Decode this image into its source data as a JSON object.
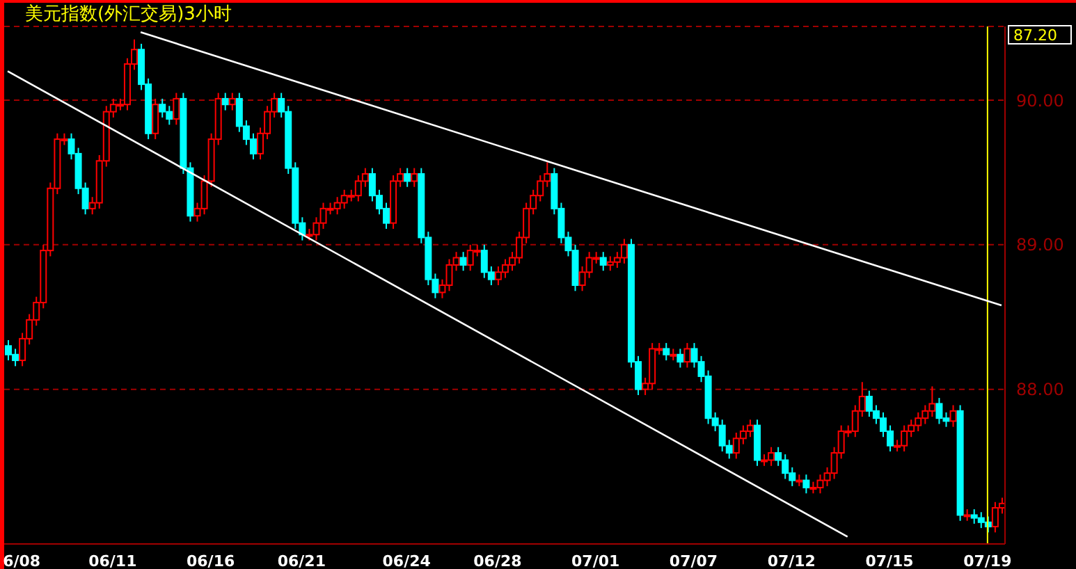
{
  "chart_data": {
    "type": "candlestick",
    "title": "美元指数(外汇交易)3小时",
    "categories": [
      null,
      null,
      "6/08",
      null,
      null,
      null,
      null,
      null,
      null,
      null,
      null,
      null,
      null,
      null,
      null,
      "06/11",
      null,
      null,
      null,
      null,
      null,
      null,
      null,
      null,
      null,
      null,
      null,
      null,
      null,
      "06/16",
      null,
      null,
      null,
      null,
      null,
      null,
      null,
      null,
      null,
      null,
      null,
      null,
      "06/21",
      null,
      null,
      null,
      null,
      null,
      null,
      null,
      null,
      null,
      null,
      null,
      null,
      null,
      null,
      "06/24",
      null,
      null,
      null,
      null,
      null,
      null,
      null,
      null,
      null,
      null,
      null,
      null,
      "06/28",
      null,
      null,
      null,
      null,
      null,
      null,
      null,
      null,
      null,
      null,
      null,
      null,
      null,
      "07/01",
      null,
      null,
      null,
      null,
      null,
      null,
      null,
      null,
      null,
      null,
      null,
      null,
      null,
      "07/07",
      null,
      null,
      null,
      null,
      null,
      null,
      null,
      null,
      null,
      null,
      null,
      null,
      null,
      "07/12",
      null,
      null,
      null,
      null,
      null,
      null,
      null,
      null,
      null,
      null,
      null,
      null,
      null,
      "07/15",
      null,
      null,
      null,
      null,
      null,
      null,
      null,
      null,
      null,
      null,
      null,
      null,
      null,
      "07/19",
      null,
      null
    ],
    "ohlc": [
      [
        88.3,
        88.34,
        88.2,
        88.24
      ],
      [
        88.24,
        88.28,
        88.16,
        88.2
      ],
      [
        88.2,
        88.39,
        88.16,
        88.35
      ],
      [
        88.35,
        88.52,
        88.31,
        88.48
      ],
      [
        88.48,
        88.64,
        88.44,
        88.6
      ],
      [
        88.6,
        89.0,
        88.56,
        88.96
      ],
      [
        88.96,
        89.43,
        88.92,
        89.39
      ],
      [
        89.39,
        89.77,
        89.35,
        89.73
      ],
      [
        89.73,
        89.77,
        89.69,
        89.73
      ],
      [
        89.73,
        89.77,
        89.59,
        89.63
      ],
      [
        89.63,
        89.67,
        89.35,
        89.39
      ],
      [
        89.39,
        89.43,
        89.21,
        89.25
      ],
      [
        89.25,
        89.33,
        89.21,
        89.29
      ],
      [
        89.29,
        89.62,
        89.25,
        89.58
      ],
      [
        89.58,
        89.96,
        89.54,
        89.92
      ],
      [
        89.92,
        90.01,
        89.88,
        89.97
      ],
      [
        89.97,
        90.01,
        89.93,
        89.97
      ],
      [
        89.97,
        90.29,
        89.93,
        90.25
      ],
      [
        90.25,
        90.42,
        90.21,
        90.35
      ],
      [
        90.35,
        90.39,
        90.07,
        90.11
      ],
      [
        90.11,
        90.15,
        89.73,
        89.77
      ],
      [
        89.77,
        90.01,
        89.73,
        89.97
      ],
      [
        89.97,
        90.01,
        89.88,
        89.92
      ],
      [
        89.92,
        89.96,
        89.83,
        89.87
      ],
      [
        89.87,
        90.05,
        89.83,
        90.01
      ],
      [
        90.01,
        90.05,
        89.49,
        89.53
      ],
      [
        89.53,
        89.57,
        89.16,
        89.2
      ],
      [
        89.2,
        89.29,
        89.16,
        89.25
      ],
      [
        89.25,
        89.48,
        89.21,
        89.44
      ],
      [
        89.44,
        89.77,
        89.4,
        89.73
      ],
      [
        89.73,
        90.05,
        89.69,
        90.01
      ],
      [
        90.01,
        90.05,
        89.93,
        89.97
      ],
      [
        89.97,
        90.05,
        89.93,
        90.01
      ],
      [
        90.01,
        90.05,
        89.78,
        89.82
      ],
      [
        89.82,
        89.86,
        89.69,
        89.73
      ],
      [
        89.73,
        89.77,
        89.59,
        89.63
      ],
      [
        89.63,
        89.81,
        89.59,
        89.77
      ],
      [
        89.77,
        89.96,
        89.73,
        89.92
      ],
      [
        89.92,
        90.05,
        89.88,
        90.01
      ],
      [
        90.01,
        90.05,
        89.88,
        89.92
      ],
      [
        89.92,
        89.96,
        89.49,
        89.53
      ],
      [
        89.53,
        89.57,
        89.11,
        89.15
      ],
      [
        89.15,
        89.19,
        89.03,
        89.07
      ],
      [
        89.07,
        89.11,
        89.03,
        89.07
      ],
      [
        89.07,
        89.19,
        89.03,
        89.15
      ],
      [
        89.15,
        89.29,
        89.11,
        89.25
      ],
      [
        89.25,
        89.29,
        89.21,
        89.25
      ],
      [
        89.25,
        89.33,
        89.21,
        89.29
      ],
      [
        89.29,
        89.38,
        89.25,
        89.34
      ],
      [
        89.34,
        89.38,
        89.3,
        89.34
      ],
      [
        89.34,
        89.48,
        89.3,
        89.44
      ],
      [
        89.44,
        89.53,
        89.4,
        89.49
      ],
      [
        89.49,
        89.53,
        89.3,
        89.34
      ],
      [
        89.34,
        89.38,
        89.21,
        89.25
      ],
      [
        89.25,
        89.29,
        89.11,
        89.15
      ],
      [
        89.15,
        89.48,
        89.11,
        89.44
      ],
      [
        89.44,
        89.53,
        89.4,
        89.49
      ],
      [
        89.49,
        89.53,
        89.4,
        89.44
      ],
      [
        89.44,
        89.53,
        89.4,
        89.49
      ],
      [
        89.49,
        89.53,
        89.01,
        89.05
      ],
      [
        89.05,
        89.09,
        88.72,
        88.76
      ],
      [
        88.76,
        88.8,
        88.63,
        88.67
      ],
      [
        88.67,
        88.76,
        88.63,
        88.72
      ],
      [
        88.72,
        88.9,
        88.68,
        88.86
      ],
      [
        88.86,
        88.95,
        88.82,
        88.91
      ],
      [
        88.91,
        88.95,
        88.82,
        88.86
      ],
      [
        88.86,
        89.0,
        88.82,
        88.96
      ],
      [
        88.96,
        89.0,
        88.92,
        88.96
      ],
      [
        88.96,
        89.0,
        88.77,
        88.81
      ],
      [
        88.81,
        88.85,
        88.72,
        88.76
      ],
      [
        88.76,
        88.85,
        88.72,
        88.81
      ],
      [
        88.81,
        88.9,
        88.77,
        88.86
      ],
      [
        88.86,
        88.95,
        88.82,
        88.91
      ],
      [
        88.91,
        89.09,
        88.87,
        89.05
      ],
      [
        89.05,
        89.29,
        89.01,
        89.25
      ],
      [
        89.25,
        89.38,
        89.21,
        89.34
      ],
      [
        89.34,
        89.48,
        89.3,
        89.44
      ],
      [
        89.44,
        89.57,
        89.4,
        89.49
      ],
      [
        89.49,
        89.53,
        89.21,
        89.25
      ],
      [
        89.25,
        89.29,
        89.01,
        89.05
      ],
      [
        89.05,
        89.09,
        88.92,
        88.96
      ],
      [
        88.96,
        89.0,
        88.68,
        88.72
      ],
      [
        88.72,
        88.85,
        88.68,
        88.81
      ],
      [
        88.81,
        88.95,
        88.77,
        88.91
      ],
      [
        88.91,
        88.95,
        88.87,
        88.91
      ],
      [
        88.91,
        88.95,
        88.82,
        88.86
      ],
      [
        88.86,
        88.92,
        88.82,
        88.88
      ],
      [
        88.88,
        88.95,
        88.84,
        88.91
      ],
      [
        88.91,
        89.04,
        88.87,
        89.0
      ],
      [
        89.0,
        89.04,
        88.15,
        88.19
      ],
      [
        88.19,
        88.23,
        87.96,
        88.0
      ],
      [
        88.0,
        88.08,
        87.96,
        88.04
      ],
      [
        88.04,
        88.32,
        88.0,
        88.28
      ],
      [
        88.28,
        88.32,
        88.24,
        88.28
      ],
      [
        88.28,
        88.32,
        88.2,
        88.24
      ],
      [
        88.24,
        88.28,
        88.2,
        88.24
      ],
      [
        88.24,
        88.28,
        88.15,
        88.19
      ],
      [
        88.19,
        88.32,
        88.15,
        88.28
      ],
      [
        88.28,
        88.32,
        88.15,
        88.19
      ],
      [
        88.19,
        88.23,
        88.05,
        88.09
      ],
      [
        88.09,
        88.13,
        87.76,
        87.8
      ],
      [
        87.8,
        87.84,
        87.71,
        87.75
      ],
      [
        87.75,
        87.79,
        87.57,
        87.61
      ],
      [
        87.61,
        87.65,
        87.52,
        87.56
      ],
      [
        87.56,
        87.7,
        87.52,
        87.66
      ],
      [
        87.66,
        87.75,
        87.62,
        87.71
      ],
      [
        87.71,
        87.79,
        87.67,
        87.75
      ],
      [
        87.75,
        87.79,
        87.47,
        87.51
      ],
      [
        87.51,
        87.55,
        87.47,
        87.51
      ],
      [
        87.51,
        87.6,
        87.47,
        87.56
      ],
      [
        87.56,
        87.6,
        87.47,
        87.51
      ],
      [
        87.51,
        87.55,
        87.38,
        87.42
      ],
      [
        87.42,
        87.46,
        87.33,
        87.37
      ],
      [
        87.37,
        87.41,
        87.33,
        87.37
      ],
      [
        87.37,
        87.41,
        87.28,
        87.32
      ],
      [
        87.32,
        87.36,
        87.28,
        87.32
      ],
      [
        87.32,
        87.41,
        87.28,
        87.37
      ],
      [
        87.37,
        87.46,
        87.33,
        87.42
      ],
      [
        87.42,
        87.6,
        87.38,
        87.56
      ],
      [
        87.56,
        87.75,
        87.52,
        87.71
      ],
      [
        87.71,
        87.75,
        87.67,
        87.71
      ],
      [
        87.71,
        87.89,
        87.67,
        87.85
      ],
      [
        87.85,
        88.05,
        87.81,
        87.95
      ],
      [
        87.95,
        87.99,
        87.81,
        87.85
      ],
      [
        87.85,
        87.89,
        87.76,
        87.8
      ],
      [
        87.8,
        87.84,
        87.67,
        87.71
      ],
      [
        87.71,
        87.75,
        87.57,
        87.61
      ],
      [
        87.61,
        87.65,
        87.57,
        87.61
      ],
      [
        87.61,
        87.75,
        87.57,
        87.71
      ],
      [
        87.71,
        87.79,
        87.67,
        87.75
      ],
      [
        87.75,
        87.84,
        87.71,
        87.8
      ],
      [
        87.8,
        87.89,
        87.76,
        87.85
      ],
      [
        87.85,
        88.02,
        87.81,
        87.9
      ],
      [
        87.9,
        87.94,
        87.76,
        87.8
      ],
      [
        87.8,
        87.84,
        87.74,
        87.78
      ],
      [
        87.78,
        87.89,
        87.74,
        87.85
      ],
      [
        87.85,
        87.89,
        87.09,
        87.13
      ],
      [
        87.13,
        87.17,
        87.09,
        87.13
      ],
      [
        87.13,
        87.17,
        87.07,
        87.11
      ],
      [
        87.11,
        87.15,
        87.04,
        87.08
      ],
      [
        87.08,
        87.12,
        87.01,
        87.05
      ],
      [
        87.05,
        87.22,
        87.01,
        87.18
      ],
      [
        87.18,
        87.25,
        87.14,
        87.21
      ]
    ],
    "series": [
      {
        "type": "line",
        "color": "#ffffff",
        "values": [
          null,
          null,
          null,
          null,
          null,
          null,
          null,
          null,
          null,
          null,
          null,
          null,
          null,
          null,
          null,
          null,
          null,
          null,
          null,
          90.47,
          null,
          null,
          null,
          null,
          null,
          null,
          null,
          null,
          null,
          null,
          null,
          null,
          null,
          null,
          null,
          null,
          null,
          null,
          null,
          null,
          null,
          null,
          null,
          null,
          null,
          null,
          null,
          null,
          null,
          null,
          null,
          null,
          null,
          null,
          null,
          null,
          null,
          null,
          null,
          null,
          null,
          null,
          null,
          null,
          null,
          null,
          null,
          null,
          null,
          null,
          null,
          null,
          null,
          null,
          null,
          null,
          null,
          null,
          null,
          null,
          null,
          null,
          null,
          null,
          null,
          null,
          null,
          null,
          null,
          null,
          null,
          null,
          null,
          null,
          null,
          null,
          null,
          null,
          null,
          null,
          null,
          null,
          null,
          null,
          null,
          null,
          null,
          null,
          null,
          null,
          null,
          null,
          null,
          null,
          null,
          null,
          null,
          null,
          null,
          null,
          null,
          null,
          null,
          null,
          null,
          null,
          null,
          null,
          null,
          null,
          null,
          null,
          null,
          null,
          null,
          null,
          null,
          null,
          null,
          null,
          null,
          null,
          88.58
        ]
      },
      {
        "type": "line",
        "color": "#ffffff",
        "values": [
          90.2,
          null,
          null,
          null,
          null,
          null,
          null,
          null,
          null,
          null,
          null,
          null,
          null,
          null,
          null,
          null,
          null,
          null,
          null,
          null,
          null,
          null,
          null,
          null,
          null,
          null,
          null,
          null,
          null,
          null,
          null,
          null,
          null,
          null,
          null,
          null,
          null,
          null,
          null,
          null,
          null,
          null,
          null,
          null,
          null,
          null,
          null,
          null,
          null,
          null,
          null,
          null,
          null,
          null,
          null,
          null,
          null,
          null,
          null,
          null,
          null,
          null,
          null,
          null,
          null,
          null,
          null,
          null,
          null,
          null,
          null,
          null,
          null,
          null,
          null,
          null,
          null,
          null,
          null,
          null,
          null,
          null,
          null,
          null,
          null,
          null,
          null,
          null,
          null,
          null,
          null,
          null,
          null,
          null,
          null,
          null,
          null,
          null,
          null,
          null,
          null,
          null,
          null,
          null,
          null,
          null,
          null,
          null,
          null,
          null,
          null,
          null,
          null,
          null,
          null,
          null,
          null,
          null,
          null,
          null,
          86.98,
          null,
          null,
          null,
          null,
          null,
          null,
          null,
          null,
          null,
          null,
          null,
          null,
          null,
          null,
          null,
          null,
          null,
          null,
          null,
          null,
          null,
          null
        ]
      }
    ],
    "ylim": [
      86.93,
      90.51
    ],
    "yticks": [
      {
        "value": 88,
        "label": "88.00"
      },
      {
        "value": 89,
        "label": "89.00"
      },
      {
        "value": 90,
        "label": "90.00"
      }
    ],
    "grid": "y",
    "ref_lines": [
      {
        "axis": "x",
        "value": "07/19",
        "color": "#ffff00"
      }
    ],
    "annotations": [
      "87.20"
    ]
  }
}
